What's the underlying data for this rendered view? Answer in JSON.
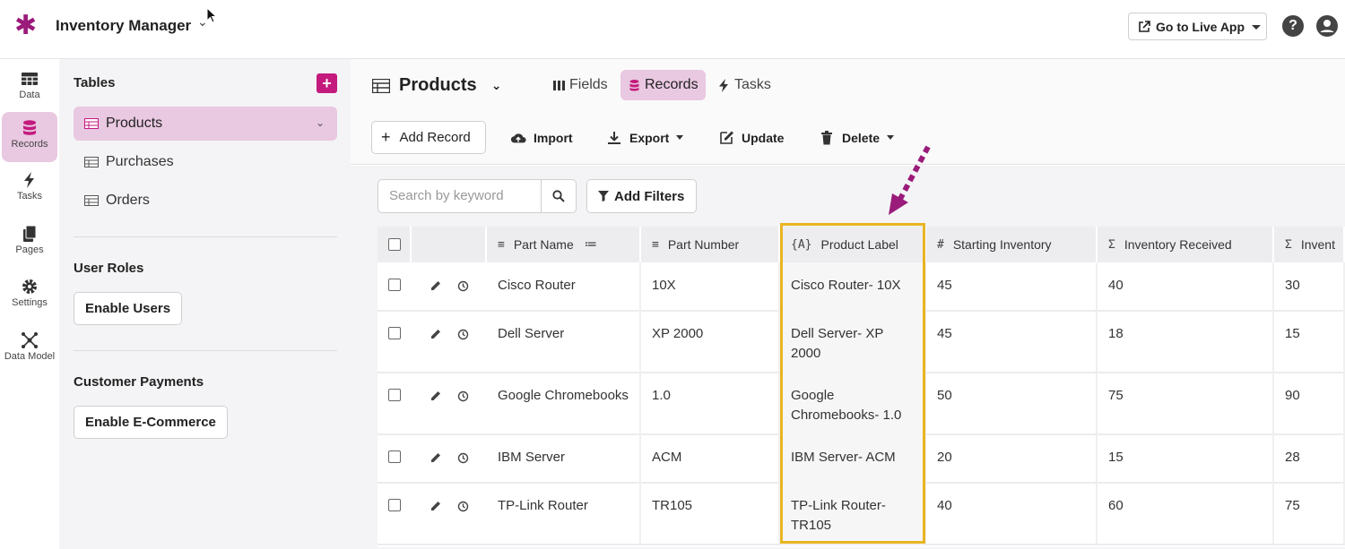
{
  "app": {
    "title": "Inventory Manager",
    "live_button": "Go to Live App"
  },
  "nav": [
    {
      "label": "Data",
      "icon": "table-icon"
    },
    {
      "label": "Records",
      "icon": "database-icon",
      "active": true
    },
    {
      "label": "Tasks",
      "icon": "lightning-icon"
    },
    {
      "label": "Pages",
      "icon": "pages-icon"
    },
    {
      "label": "Settings",
      "icon": "gear-icon"
    },
    {
      "label": "Data Model",
      "icon": "graph-icon"
    }
  ],
  "tables_panel": {
    "heading": "Tables",
    "items": [
      "Products",
      "Purchases",
      "Orders"
    ],
    "user_roles_heading": "User Roles",
    "enable_users": "Enable Users",
    "payments_heading": "Customer Payments",
    "enable_ecommerce": "Enable E-Commerce"
  },
  "main": {
    "title": "Products",
    "tabs": [
      "Fields",
      "Records",
      "Tasks"
    ],
    "actions": {
      "add_record": "Add Record",
      "import": "Import",
      "export": "Export",
      "update": "Update",
      "delete": "Delete"
    },
    "search_placeholder": "Search by keyword",
    "add_filters": "Add Filters"
  },
  "table": {
    "columns": [
      {
        "label": "Part Name",
        "icon": "≡"
      },
      {
        "label": "Part Number",
        "icon": "≡"
      },
      {
        "label": "Product Label",
        "icon": "{A}"
      },
      {
        "label": "Starting Inventory",
        "icon": "#"
      },
      {
        "label": "Inventory Received",
        "icon": "Σ"
      },
      {
        "label": "Invent",
        "icon": "Σ"
      }
    ],
    "rows": [
      {
        "part_name": "Cisco Router",
        "part_number": "10X",
        "product_label": "Cisco Router- 10X",
        "starting": "45",
        "received": "40",
        "inv": "30"
      },
      {
        "part_name": "Dell Server",
        "part_number": "XP 2000",
        "product_label": "Dell Server- XP 2000",
        "starting": "45",
        "received": "18",
        "inv": "15"
      },
      {
        "part_name": "Google Chromebooks",
        "part_number": "1.0",
        "product_label": "Google Chromebooks- 1.0",
        "starting": "50",
        "received": "75",
        "inv": "90"
      },
      {
        "part_name": "IBM Server",
        "part_number": "ACM",
        "product_label": "IBM Server- ACM",
        "starting": "20",
        "received": "15",
        "inv": "28"
      },
      {
        "part_name": "TP-Link Router",
        "part_number": "TR105",
        "product_label": "TP-Link Router- TR105",
        "starting": "40",
        "received": "60",
        "inv": "75"
      }
    ]
  },
  "colors": {
    "accent": "#c41a7d",
    "active_bg": "#e9c8e1",
    "highlight": "#e8b521",
    "arrow": "#9a1b7a"
  }
}
